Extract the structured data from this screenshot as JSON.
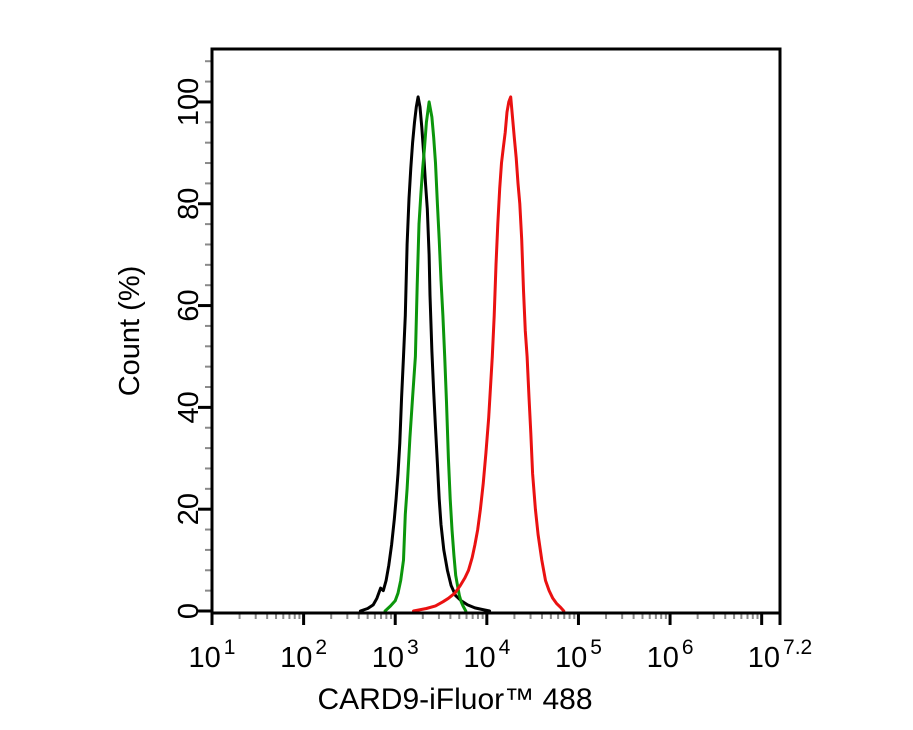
{
  "figure": {
    "background": "#ffffff",
    "description": "Flow cytometry overlay histogram"
  },
  "chart_data": {
    "type": "line",
    "subtype": "flow-cytometry-histogram",
    "title": "",
    "xlabel": "CARD9-iFluor™ 488",
    "ylabel": "Count (%)",
    "legend": "none",
    "grid": "off",
    "axis_color": "#000000",
    "minor_tick_color": "#8a8a8a",
    "x_axis": {
      "scale": "log10",
      "min_exp": 1,
      "max_exp": 7.2,
      "major_tick_exps": [
        1,
        2,
        3,
        4,
        5,
        6,
        7,
        7.2
      ],
      "tick_labels": [
        {
          "base": "10",
          "exp": "1",
          "at": 1
        },
        {
          "base": "10",
          "exp": "2",
          "at": 2
        },
        {
          "base": "10",
          "exp": "3",
          "at": 3
        },
        {
          "base": "10",
          "exp": "4",
          "at": 4
        },
        {
          "base": "10",
          "exp": "5",
          "at": 5
        },
        {
          "base": "10",
          "exp": "6",
          "at": 6
        },
        {
          "base": "10",
          "exp": "7.2",
          "at": 7.2
        }
      ],
      "minor_ticks": "log-decades-2-9"
    },
    "y_axis": {
      "min": 0,
      "max_labeled": 100,
      "display_max": 110.4,
      "ticks": [
        0,
        20,
        40,
        60,
        80,
        100
      ],
      "minor_step": 4,
      "unit": "%"
    },
    "series": [
      {
        "name": "black",
        "color": "#000000",
        "stroke_width": 3,
        "points": [
          [
            2.62,
            0
          ],
          [
            2.7,
            0.5
          ],
          [
            2.76,
            1.2
          ],
          [
            2.8,
            2.5
          ],
          [
            2.84,
            4.5
          ],
          [
            2.87,
            4
          ],
          [
            2.9,
            6
          ],
          [
            2.93,
            9
          ],
          [
            2.96,
            13
          ],
          [
            2.99,
            18
          ],
          [
            3.01,
            22
          ],
          [
            3.03,
            27
          ],
          [
            3.05,
            33
          ],
          [
            3.07,
            42
          ],
          [
            3.09,
            50
          ],
          [
            3.11,
            58
          ],
          [
            3.13,
            72
          ],
          [
            3.15,
            81
          ],
          [
            3.17,
            87
          ],
          [
            3.19,
            92
          ],
          [
            3.21,
            96
          ],
          [
            3.23,
            99
          ],
          [
            3.25,
            101
          ],
          [
            3.27,
            99
          ],
          [
            3.29,
            95
          ],
          [
            3.31,
            90
          ],
          [
            3.33,
            84
          ],
          [
            3.35,
            79
          ],
          [
            3.37,
            70
          ],
          [
            3.38,
            62
          ],
          [
            3.4,
            51
          ],
          [
            3.42,
            43
          ],
          [
            3.44,
            36
          ],
          [
            3.46,
            29
          ],
          [
            3.48,
            22
          ],
          [
            3.5,
            17
          ],
          [
            3.53,
            12
          ],
          [
            3.57,
            8
          ],
          [
            3.61,
            5
          ],
          [
            3.66,
            3
          ],
          [
            3.72,
            2
          ],
          [
            3.79,
            1.2
          ],
          [
            3.87,
            0.6
          ],
          [
            3.95,
            0.3
          ],
          [
            4.03,
            0
          ]
        ]
      },
      {
        "name": "green",
        "color": "#0c960c",
        "stroke_width": 3,
        "points": [
          [
            2.89,
            0
          ],
          [
            2.95,
            1
          ],
          [
            3.0,
            2
          ],
          [
            3.03,
            3.5
          ],
          [
            3.06,
            6
          ],
          [
            3.09,
            10
          ],
          [
            3.11,
            19
          ],
          [
            3.13,
            24
          ],
          [
            3.16,
            34
          ],
          [
            3.19,
            42
          ],
          [
            3.22,
            50
          ],
          [
            3.24,
            64
          ],
          [
            3.26,
            76
          ],
          [
            3.28,
            82
          ],
          [
            3.3,
            87
          ],
          [
            3.32,
            91
          ],
          [
            3.34,
            96
          ],
          [
            3.37,
            100
          ],
          [
            3.4,
            97
          ],
          [
            3.42,
            93
          ],
          [
            3.44,
            88
          ],
          [
            3.46,
            80
          ],
          [
            3.48,
            73
          ],
          [
            3.5,
            65
          ],
          [
            3.52,
            58
          ],
          [
            3.54,
            50
          ],
          [
            3.56,
            41
          ],
          [
            3.58,
            30
          ],
          [
            3.6,
            22
          ],
          [
            3.62,
            16
          ],
          [
            3.64,
            11
          ],
          [
            3.66,
            7
          ],
          [
            3.68,
            5
          ],
          [
            3.7,
            3
          ],
          [
            3.72,
            1.8
          ],
          [
            3.74,
            1
          ],
          [
            3.77,
            0
          ]
        ]
      },
      {
        "name": "red",
        "color": "#ea1111",
        "stroke_width": 3,
        "points": [
          [
            3.2,
            0
          ],
          [
            3.34,
            0.5
          ],
          [
            3.44,
            1
          ],
          [
            3.52,
            1.8
          ],
          [
            3.58,
            2.5
          ],
          [
            3.65,
            3.5
          ],
          [
            3.71,
            5
          ],
          [
            3.76,
            6.5
          ],
          [
            3.8,
            8
          ],
          [
            3.84,
            10.5
          ],
          [
            3.87,
            13
          ],
          [
            3.9,
            16
          ],
          [
            3.93,
            20
          ],
          [
            3.96,
            25
          ],
          [
            3.99,
            31
          ],
          [
            4.02,
            38
          ],
          [
            4.04,
            44
          ],
          [
            4.06,
            50
          ],
          [
            4.08,
            58
          ],
          [
            4.1,
            68
          ],
          [
            4.12,
            76
          ],
          [
            4.14,
            83
          ],
          [
            4.16,
            88
          ],
          [
            4.18,
            91
          ],
          [
            4.2,
            94
          ],
          [
            4.22,
            98
          ],
          [
            4.24,
            100
          ],
          [
            4.26,
            101
          ],
          [
            4.28,
            97
          ],
          [
            4.3,
            93
          ],
          [
            4.32,
            89
          ],
          [
            4.34,
            84
          ],
          [
            4.36,
            80
          ],
          [
            4.38,
            73
          ],
          [
            4.4,
            63
          ],
          [
            4.42,
            55
          ],
          [
            4.44,
            50
          ],
          [
            4.46,
            42
          ],
          [
            4.48,
            35
          ],
          [
            4.5,
            27
          ],
          [
            4.53,
            20
          ],
          [
            4.56,
            15
          ],
          [
            4.6,
            10
          ],
          [
            4.64,
            6
          ],
          [
            4.68,
            4
          ],
          [
            4.72,
            2.5
          ],
          [
            4.76,
            1.5
          ],
          [
            4.8,
            0.8
          ],
          [
            4.84,
            0
          ]
        ]
      }
    ]
  }
}
